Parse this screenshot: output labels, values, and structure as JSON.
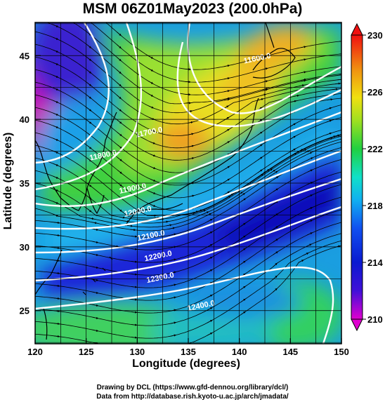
{
  "title": "MSM 06Z01May2023 (200.0hPa)",
  "xlabel": "Longitude (degrees)",
  "ylabel": "Latitude  (degrees)",
  "credits": {
    "drawing": "Drawing by DCL (https://www.gfd-dennou.org/library/dcl/)",
    "data": "Data from http://database.rish.kyoto-u.ac.jp/arch/jmadata/"
  },
  "chart_data": {
    "type": "heatmap",
    "xlim": [
      120,
      150
    ],
    "ylim": [
      22.4,
      47.6
    ],
    "x_ticks": [
      120,
      125,
      130,
      135,
      140,
      145,
      150
    ],
    "y_ticks": [
      25,
      30,
      35,
      40,
      45
    ],
    "colorbar": {
      "min": 210,
      "max": 230,
      "ticks": [
        210,
        214,
        218,
        222,
        226,
        230
      ]
    },
    "grid": true,
    "contour_labels": [
      {
        "text": "11600.0",
        "lon": 141.8,
        "lat": 44.6
      },
      {
        "text": "11700.0",
        "lon": 131.2,
        "lat": 38.8
      },
      {
        "text": "11800.0",
        "lon": 126.7,
        "lat": 37.0
      },
      {
        "text": "11900.0",
        "lon": 129.6,
        "lat": 34.4
      },
      {
        "text": "12000.0",
        "lon": 130.1,
        "lat": 32.6
      },
      {
        "text": "12100.0",
        "lon": 131.4,
        "lat": 30.7
      },
      {
        "text": "12200.0",
        "lon": 132.1,
        "lat": 29.1
      },
      {
        "text": "12300.0",
        "lon": 132.3,
        "lat": 27.4
      },
      {
        "text": "12400.0",
        "lon": 136.3,
        "lat": 25.2
      }
    ]
  }
}
